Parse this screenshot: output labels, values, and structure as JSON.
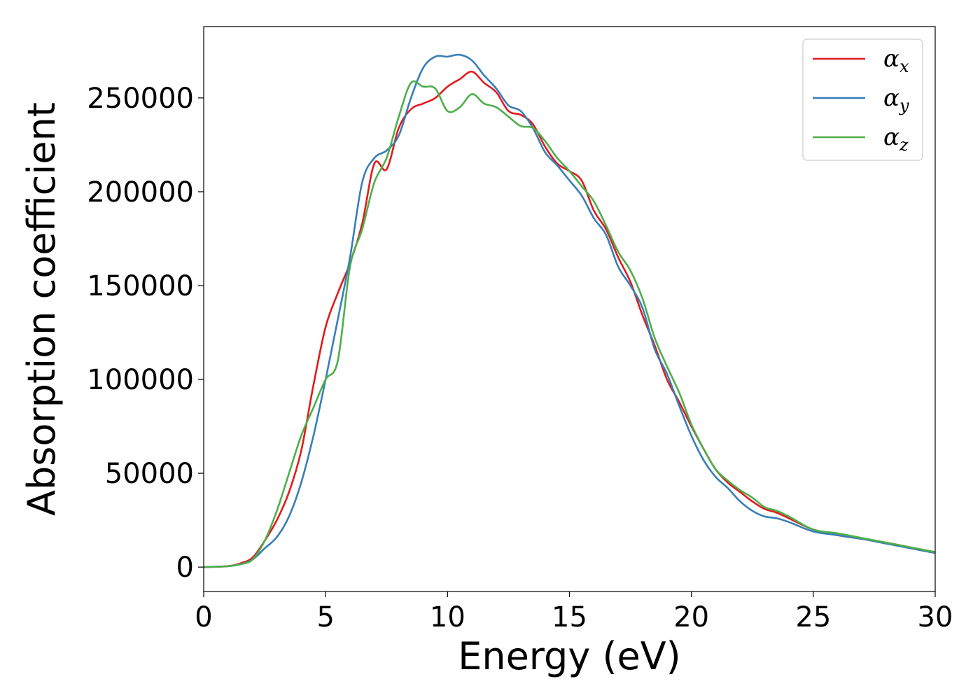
{
  "chart_data": {
    "type": "line",
    "xlabel": "Energy (eV)",
    "ylabel": "Absorption coefficient",
    "xlim": [
      0,
      30
    ],
    "ylim": [
      -13000,
      288000
    ],
    "xticks": [
      0,
      5,
      10,
      15,
      20,
      25,
      30
    ],
    "yticks": [
      0,
      50000,
      100000,
      150000,
      200000,
      250000
    ],
    "grid": false,
    "legend_position": "top-right",
    "x": [
      0,
      1,
      1.5,
      2,
      2.5,
      3,
      3.5,
      4,
      4.5,
      5,
      5.5,
      6,
      6.5,
      7,
      7.5,
      8,
      8.5,
      9,
      9.5,
      10,
      10.5,
      11,
      11.5,
      12,
      12.5,
      13,
      13.5,
      14,
      14.5,
      15,
      15.5,
      16,
      16.5,
      17,
      17.5,
      18,
      18.5,
      19,
      19.5,
      20,
      20.5,
      21,
      21.5,
      22,
      22.5,
      23,
      23.5,
      24,
      25,
      26,
      27,
      28,
      29,
      30
    ],
    "series": [
      {
        "name": "α",
        "subscript": "x",
        "color": "#e41a1c",
        "values": [
          0,
          500,
          2000,
          5000,
          14000,
          25000,
          40000,
          62000,
          97000,
          128000,
          146000,
          162000,
          183000,
          215000,
          212000,
          234000,
          244000,
          247000,
          250000,
          256000,
          260000,
          264000,
          258000,
          253000,
          243000,
          241000,
          236000,
          224000,
          215000,
          211000,
          206000,
          190000,
          180000,
          165000,
          152000,
          134000,
          118000,
          100000,
          88000,
          75000,
          63000,
          52000,
          45000,
          40000,
          35000,
          31000,
          29000,
          26000,
          20000,
          17000,
          15000,
          13000,
          10500,
          8000
        ]
      },
      {
        "name": "α",
        "subscript": "y",
        "color": "#377eb8",
        "values": [
          0,
          500,
          1500,
          4000,
          10000,
          16000,
          27000,
          45000,
          70000,
          100000,
          132000,
          165000,
          205000,
          218000,
          222000,
          230000,
          250000,
          266000,
          272000,
          272000,
          273000,
          270000,
          262000,
          255000,
          246000,
          243000,
          234000,
          221000,
          214000,
          206000,
          198000,
          186000,
          177000,
          160000,
          150000,
          138000,
          116000,
          103000,
          86000,
          70000,
          57000,
          48000,
          42000,
          35000,
          30000,
          27000,
          26000,
          24000,
          19000,
          17000,
          15000,
          12500,
          10000,
          7500
        ]
      },
      {
        "name": "α",
        "subscript": "z",
        "color": "#4daf4a",
        "values": [
          0,
          500,
          1500,
          4000,
          14000,
          30000,
          50000,
          70000,
          85000,
          100000,
          110000,
          160000,
          180000,
          205000,
          218000,
          240000,
          258000,
          256000,
          255000,
          243000,
          245000,
          252000,
          247000,
          245000,
          240000,
          235000,
          234000,
          227000,
          218000,
          211000,
          203000,
          195000,
          182000,
          168000,
          158000,
          143000,
          122000,
          107000,
          93000,
          76000,
          63000,
          52000,
          46000,
          41000,
          37000,
          32000,
          30000,
          27000,
          20000,
          18000,
          15500,
          13000,
          10500,
          8000
        ]
      }
    ]
  }
}
